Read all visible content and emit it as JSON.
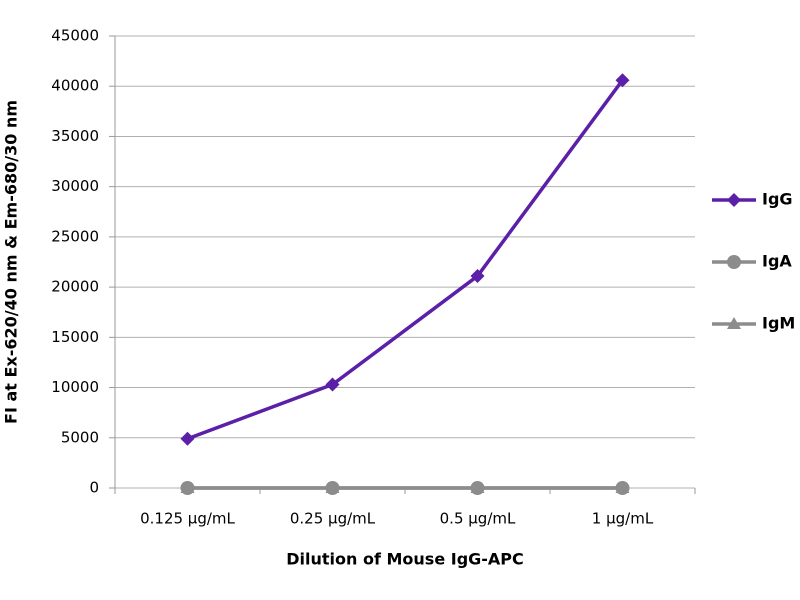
{
  "chart_data": {
    "type": "line",
    "x_label": "Dilution of Mouse IgG-APC",
    "y_label": "FI at Ex-620/40 nm & Em-680/30 nm",
    "categories": [
      "0.125 µg/mL",
      "0.25 µg/mL",
      "0.5 µg/mL",
      "1 µg/mL"
    ],
    "series": [
      {
        "name": "IgG",
        "color": "#5b1fa8",
        "marker": "diamond",
        "values": [
          4900,
          10300,
          21100,
          40600
        ]
      },
      {
        "name": "IgA",
        "color": "#8c8c8c",
        "marker": "circle",
        "values": [
          0,
          0,
          0,
          0
        ]
      },
      {
        "name": "IgM",
        "color": "#8c8c8c",
        "marker": "triangle",
        "values": [
          0,
          0,
          0,
          0
        ]
      }
    ],
    "ylim": [
      0,
      45000
    ],
    "yticks": [
      0,
      5000,
      10000,
      15000,
      20000,
      25000,
      30000,
      35000,
      40000,
      45000
    ],
    "grid": true,
    "legend": "right"
  }
}
